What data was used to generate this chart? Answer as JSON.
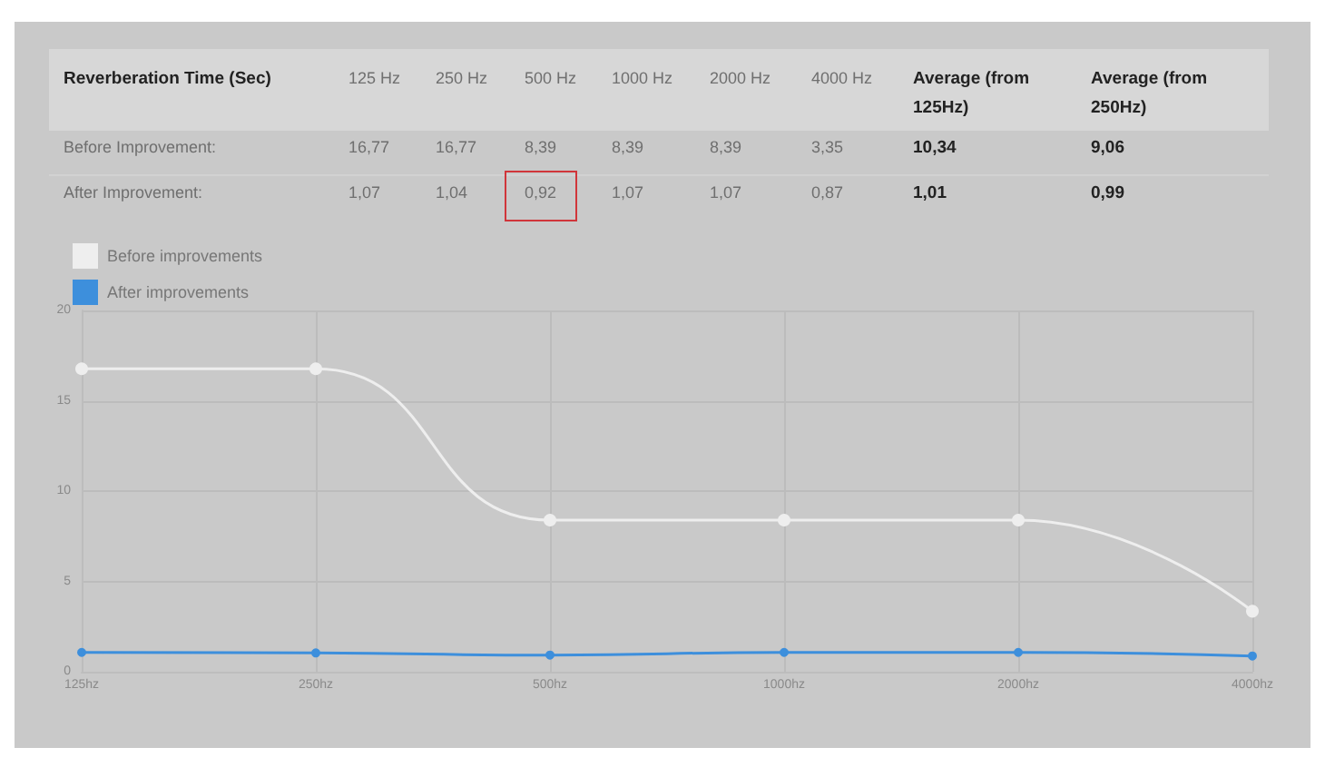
{
  "chart_data": {
    "type": "line",
    "categories": [
      "125hz",
      "250hz",
      "500hz",
      "1000hz",
      "2000hz",
      "4000hz"
    ],
    "series": [
      {
        "name": "Before improvements",
        "color": "#eeeeee",
        "values": [
          16.77,
          16.77,
          8.39,
          8.39,
          8.39,
          3.35
        ]
      },
      {
        "name": "After improvements",
        "color": "#3d8fdc",
        "values": [
          1.07,
          1.04,
          0.92,
          1.07,
          1.07,
          0.87
        ]
      }
    ],
    "ylim": [
      0,
      20
    ],
    "yticks": [
      0,
      5,
      10,
      15,
      20
    ],
    "grid": true,
    "legend": "top left",
    "marker": "circle",
    "annotations": [
      "Reverberation Time (Sec)",
      "125 Hz",
      "250 Hz",
      "500 Hz",
      "1000 Hz",
      "2000 Hz",
      "4000 Hz",
      "Average (from 125Hz)",
      "Average (from 250Hz)",
      "Before Improvement:",
      "After Improvement:",
      "16,77",
      "16,77",
      "8,39",
      "8,39",
      "8,39",
      "3,35",
      "10,34",
      "9,06",
      "1,07",
      "1,04",
      "0,92",
      "1,07",
      "1,07",
      "0,87",
      "1,01",
      "0,99"
    ]
  }
}
